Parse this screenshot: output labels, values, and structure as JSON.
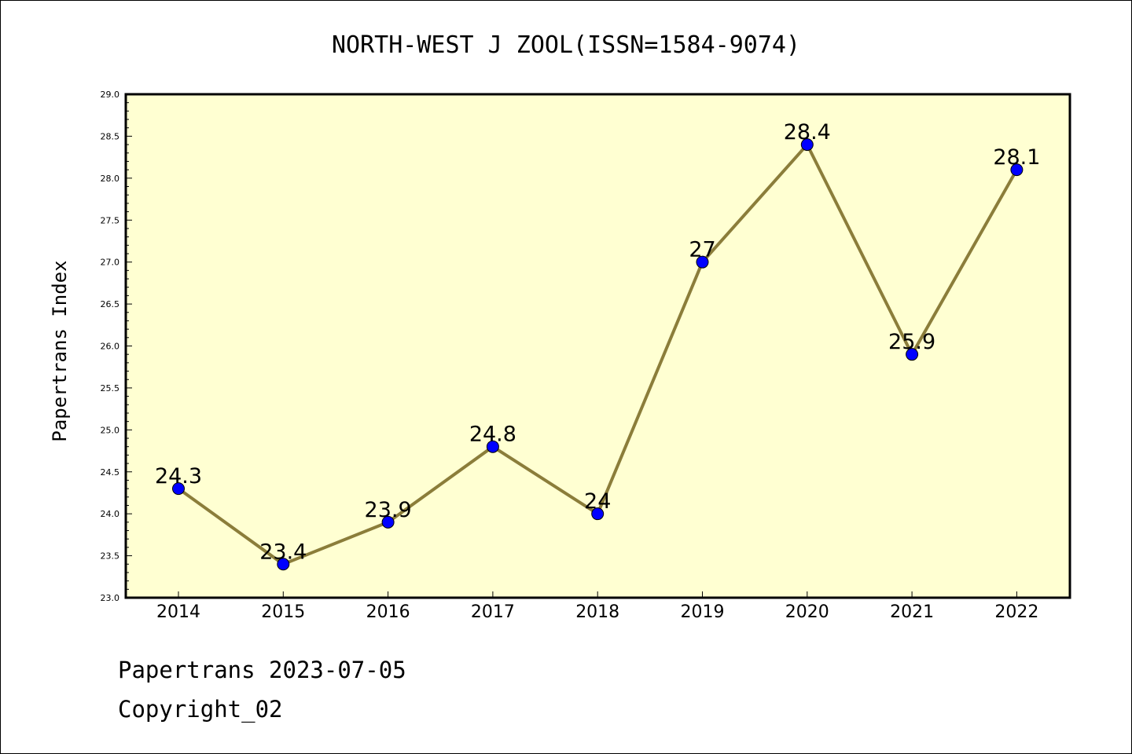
{
  "chart_data": {
    "type": "line",
    "title": "NORTH-WEST J ZOOL(ISSN=1584-9074)",
    "xlabel": "",
    "ylabel": "Papertrans Index",
    "categories": [
      "2014",
      "2015",
      "2016",
      "2017",
      "2018",
      "2019",
      "2020",
      "2021",
      "2022"
    ],
    "values": [
      24.3,
      23.4,
      23.9,
      24.8,
      24,
      27,
      28.4,
      25.9,
      28.1
    ],
    "data_labels": [
      "24.3",
      "23.4",
      "23.9",
      "24.8",
      "24",
      "27",
      "28.4",
      "25.9",
      "28.1"
    ],
    "ylim": [
      23.0,
      29.0
    ],
    "yticks": [
      "23.0",
      "23.5",
      "24.0",
      "24.5",
      "25.0",
      "25.5",
      "26.0",
      "26.5",
      "27.0",
      "27.5",
      "28.0",
      "28.5",
      "29.0"
    ],
    "grid": false,
    "legend": "none",
    "colors": {
      "plot_background": "#ffffd2",
      "line": "#8b7d3a",
      "marker": "#0000ff",
      "axis": "#000000"
    }
  },
  "footer": {
    "line1": "Papertrans 2023-07-05",
    "line2": "Copyright_02"
  }
}
